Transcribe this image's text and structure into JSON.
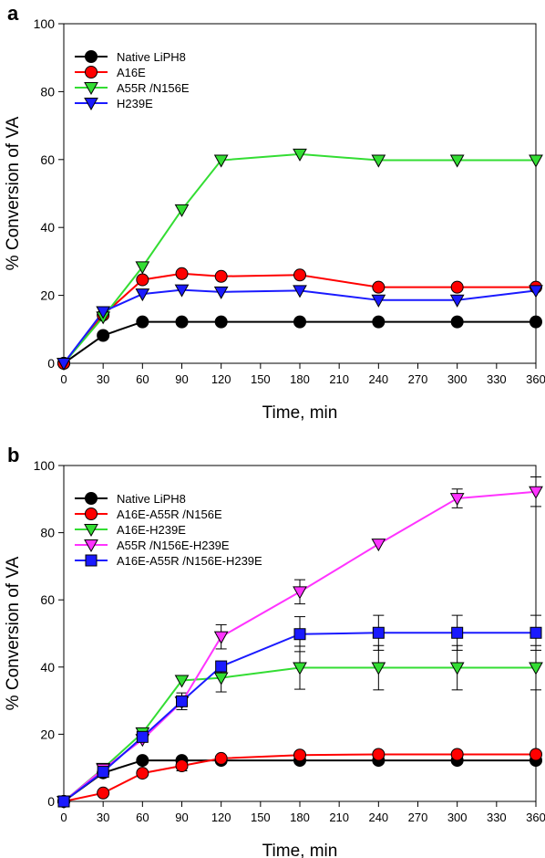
{
  "chart_data": [
    {
      "panel_label": "a",
      "type": "line",
      "xlabel": "Time, min",
      "ylabel": "% Conversion of VA",
      "xlim": [
        0,
        360
      ],
      "ylim": [
        0,
        100
      ],
      "x_ticks": [
        0,
        30,
        60,
        90,
        120,
        150,
        180,
        210,
        240,
        270,
        300,
        330,
        360
      ],
      "y_ticks": [
        0,
        20,
        40,
        60,
        80,
        100
      ],
      "legend_position": "top-left",
      "grid": false,
      "series": [
        {
          "name": "Native LiPH8",
          "color": "#000000",
          "marker": "circle",
          "x": [
            0,
            30,
            60,
            90,
            120,
            180,
            240,
            300,
            360
          ],
          "y": [
            0,
            8.2,
            12.2,
            12.2,
            12.2,
            12.2,
            12.2,
            12.2,
            12.2
          ]
        },
        {
          "name": "A16E",
          "color": "#ff0000",
          "marker": "circle",
          "x": [
            0,
            30,
            60,
            90,
            120,
            180,
            240,
            300,
            360
          ],
          "y": [
            0,
            14.2,
            24.6,
            26.4,
            25.6,
            26.0,
            22.4,
            22.4,
            22.4
          ]
        },
        {
          "name": "A55R /N156E",
          "color": "#33dd33",
          "marker": "triangle-down",
          "x": [
            0,
            30,
            60,
            90,
            120,
            180,
            240,
            300,
            360
          ],
          "y": [
            0,
            13.6,
            28.4,
            45.2,
            59.8,
            61.6,
            59.8,
            59.8,
            59.8
          ]
        },
        {
          "name": "H239E",
          "color": "#1a1aff",
          "marker": "triangle-down",
          "x": [
            0,
            30,
            60,
            90,
            120,
            180,
            240,
            300,
            360
          ],
          "y": [
            0,
            15.2,
            20.4,
            21.6,
            21.0,
            21.4,
            18.6,
            18.6,
            21.4
          ]
        }
      ]
    },
    {
      "panel_label": "b",
      "type": "line",
      "xlabel": "Time, min",
      "ylabel": "% Conversion of VA",
      "xlim": [
        0,
        360
      ],
      "ylim": [
        0,
        100
      ],
      "x_ticks": [
        0,
        30,
        60,
        90,
        120,
        150,
        180,
        210,
        240,
        270,
        300,
        330,
        360
      ],
      "y_ticks": [
        0,
        20,
        40,
        60,
        80,
        100
      ],
      "legend_position": "top-left",
      "grid": false,
      "series": [
        {
          "name": "Native LiPH8",
          "color": "#000000",
          "marker": "circle",
          "x": [
            0,
            30,
            60,
            90,
            120,
            180,
            240,
            300,
            360
          ],
          "y": [
            0,
            8.5,
            12.2,
            12.2,
            12.2,
            12.2,
            12.2,
            12.2,
            12.2
          ]
        },
        {
          "name": "A16E-A55R /N156E",
          "color": "#ff0000",
          "marker": "circle",
          "x": [
            0,
            30,
            60,
            90,
            120,
            180,
            240,
            300,
            360
          ],
          "y": [
            0,
            2.5,
            8.4,
            10.6,
            12.8,
            13.8,
            14.0,
            14.0,
            14.0
          ],
          "err": [
            0,
            0,
            0,
            1.5,
            0,
            0,
            0,
            0,
            0
          ]
        },
        {
          "name": "A16E-H239E",
          "color": "#33dd33",
          "marker": "triangle-down",
          "x": [
            0,
            30,
            60,
            90,
            120,
            180,
            240,
            300,
            360
          ],
          "y": [
            0,
            9.8,
            20.4,
            36.0,
            36.8,
            39.8,
            39.8,
            39.8,
            39.8
          ],
          "err": [
            0,
            0,
            0,
            0,
            4.2,
            6.4,
            6.6,
            6.6,
            6.6
          ]
        },
        {
          "name": "A55R /N156E-H239E",
          "color": "#ff33ff",
          "marker": "triangle-down",
          "x": [
            0,
            30,
            60,
            90,
            120,
            180,
            240,
            300,
            360
          ],
          "y": [
            0,
            9.6,
            18.4,
            29.6,
            49.0,
            62.4,
            76.6,
            90.2,
            92.2
          ],
          "err": [
            0,
            0,
            0,
            0,
            3.6,
            3.6,
            0,
            2.8,
            4.4
          ]
        },
        {
          "name": "A16E-A55R /N156E-H239E",
          "color": "#1a1aff",
          "marker": "square",
          "x": [
            0,
            30,
            60,
            90,
            120,
            180,
            240,
            300,
            360
          ],
          "y": [
            0,
            8.8,
            19.2,
            29.8,
            40.2,
            49.8,
            50.2,
            50.2,
            50.2
          ],
          "err": [
            0,
            0,
            0,
            2.5,
            0,
            5.2,
            5.2,
            5.2,
            5.2
          ]
        }
      ]
    }
  ]
}
